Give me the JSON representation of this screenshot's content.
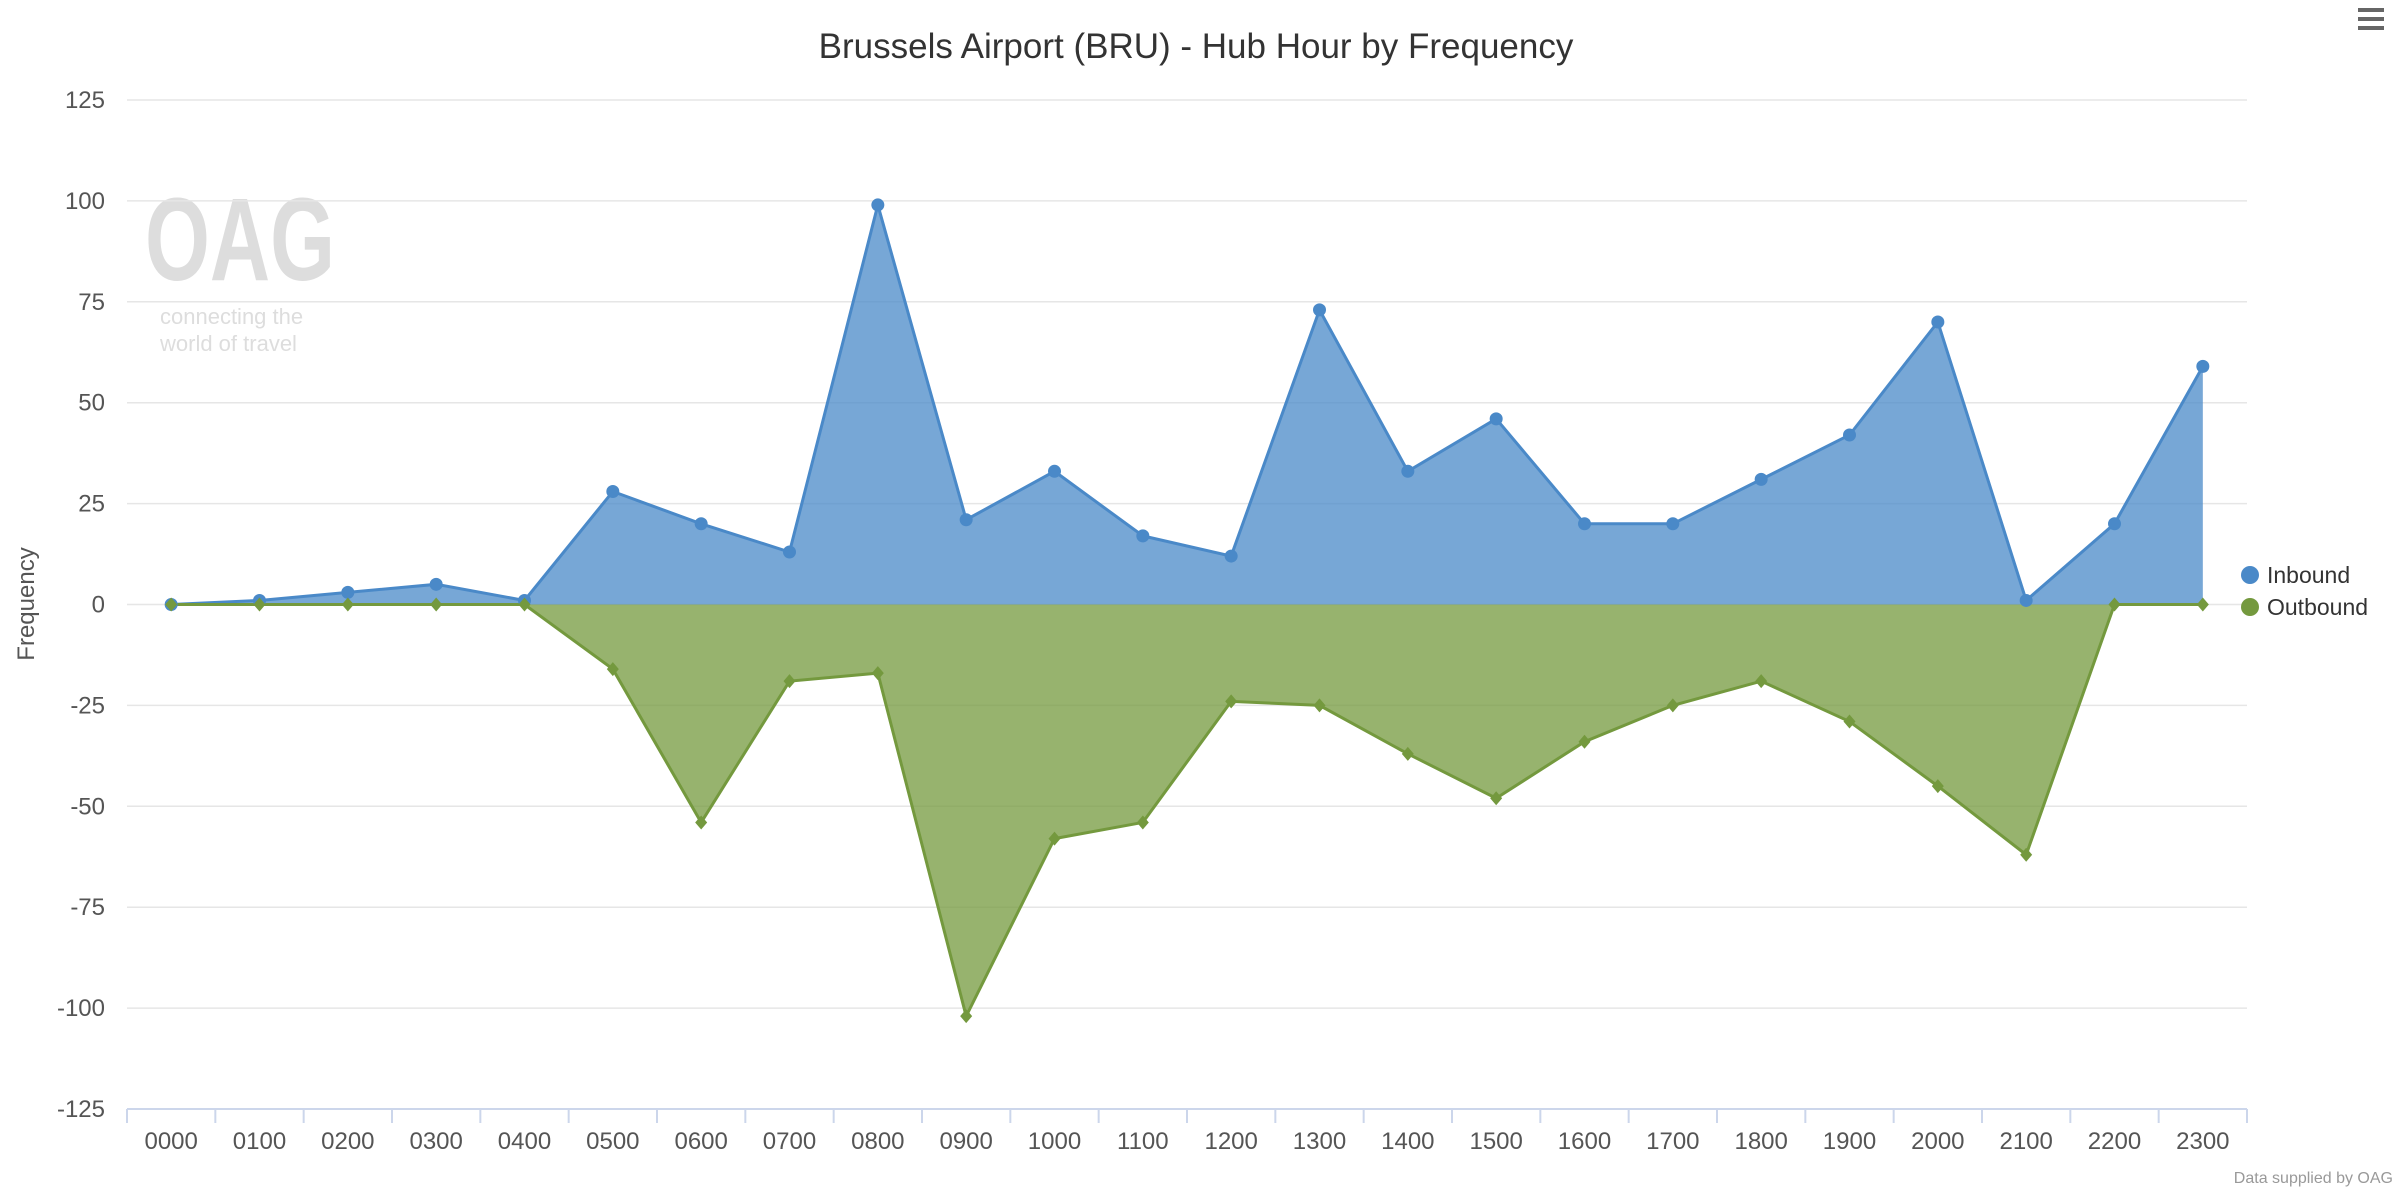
{
  "chart_data": {
    "type": "area",
    "title": "Brussels Airport (BRU) - Hub Hour by Frequency",
    "xlabel": "",
    "ylabel": "Frequency",
    "ylim": [
      -125,
      125
    ],
    "yticks": [
      125,
      100,
      75,
      50,
      25,
      0,
      -25,
      -50,
      -75,
      -100,
      -125
    ],
    "grid": true,
    "legend_position": "right",
    "categories": [
      "0000",
      "0100",
      "0200",
      "0300",
      "0400",
      "0500",
      "0600",
      "0700",
      "0800",
      "0900",
      "1000",
      "1100",
      "1200",
      "1300",
      "1400",
      "1500",
      "1600",
      "1700",
      "1800",
      "1900",
      "2000",
      "2100",
      "2200",
      "2300"
    ],
    "series": [
      {
        "name": "Inbound",
        "color": "#4a89c8",
        "marker": "circle",
        "values": [
          0,
          1,
          3,
          5,
          1,
          28,
          20,
          13,
          99,
          21,
          33,
          17,
          12,
          73,
          33,
          46,
          20,
          20,
          31,
          42,
          70,
          1,
          20,
          59
        ]
      },
      {
        "name": "Outbound",
        "color": "#74993e",
        "marker": "diamond",
        "values": [
          0,
          0,
          0,
          0,
          0,
          -16,
          -54,
          -19,
          -17,
          -102,
          -58,
          -54,
          -24,
          -25,
          -37,
          -48,
          -34,
          -25,
          -19,
          -29,
          -45,
          -62,
          0,
          0
        ]
      }
    ]
  },
  "watermark": {
    "logo": "OAG",
    "tagline_1": "connecting the",
    "tagline_2": "world of travel"
  },
  "credit": "Data supplied by OAG",
  "menu_icon": "hamburger-menu-icon"
}
